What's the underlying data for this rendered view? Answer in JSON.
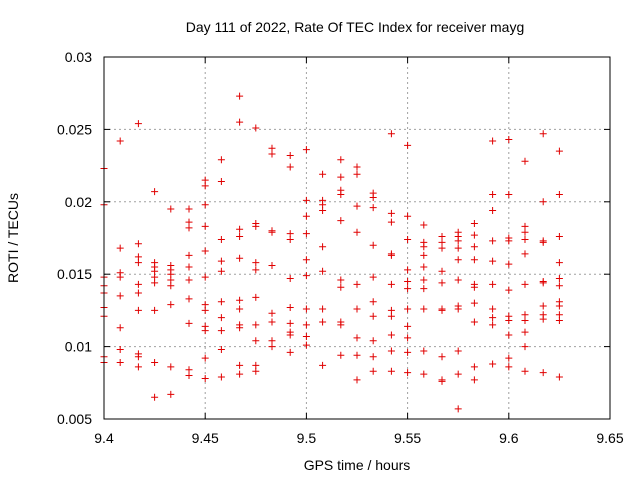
{
  "chart_data": {
    "type": "scatter",
    "title": "Day 111 of 2022, Rate Of TEC Index for receiver mayg",
    "xlabel": "GPS time / hours",
    "ylabel": "ROTI / TECUs",
    "xlim": [
      9.4,
      9.65
    ],
    "ylim": [
      0.005,
      0.03
    ],
    "xticks": [
      9.4,
      9.45,
      9.5,
      9.55,
      9.6,
      9.65
    ],
    "xtick_labels": [
      "9.4",
      "9.45",
      "9.5",
      "9.55",
      "9.6",
      "9.65"
    ],
    "yticks": [
      0.005,
      0.01,
      0.015,
      0.02,
      0.025,
      0.03
    ],
    "ytick_labels": [
      "0.005",
      "0.01",
      "0.015",
      "0.02",
      "0.025",
      "0.03"
    ],
    "grid": true,
    "marker": "+",
    "color": "#e00000",
    "series": [
      {
        "name": "ROTI",
        "points": [
          [
            9.4,
            0.0223
          ],
          [
            9.4,
            0.0198
          ],
          [
            9.4,
            0.0148
          ],
          [
            9.4,
            0.0142
          ],
          [
            9.4,
            0.0137
          ],
          [
            9.4,
            0.0127
          ],
          [
            9.4,
            0.0121
          ],
          [
            9.4,
            0.0093
          ],
          [
            9.4,
            0.0089
          ],
          [
            9.408,
            0.0242
          ],
          [
            9.408,
            0.0168
          ],
          [
            9.408,
            0.0151
          ],
          [
            9.408,
            0.0148
          ],
          [
            9.408,
            0.0135
          ],
          [
            9.408,
            0.0113
          ],
          [
            9.408,
            0.0098
          ],
          [
            9.408,
            0.0089
          ],
          [
            9.417,
            0.0254
          ],
          [
            9.417,
            0.0171
          ],
          [
            9.417,
            0.0162
          ],
          [
            9.417,
            0.0158
          ],
          [
            9.417,
            0.0143
          ],
          [
            9.417,
            0.0137
          ],
          [
            9.417,
            0.0125
          ],
          [
            9.417,
            0.0095
          ],
          [
            9.417,
            0.0093
          ],
          [
            9.417,
            0.0086
          ],
          [
            9.425,
            0.0207
          ],
          [
            9.425,
            0.0158
          ],
          [
            9.425,
            0.0155
          ],
          [
            9.425,
            0.0152
          ],
          [
            9.425,
            0.0148
          ],
          [
            9.425,
            0.0144
          ],
          [
            9.425,
            0.0125
          ],
          [
            9.425,
            0.0089
          ],
          [
            9.425,
            0.0065
          ],
          [
            9.433,
            0.0195
          ],
          [
            9.433,
            0.0156
          ],
          [
            9.433,
            0.0153
          ],
          [
            9.433,
            0.015
          ],
          [
            9.433,
            0.0146
          ],
          [
            9.433,
            0.0142
          ],
          [
            9.433,
            0.0129
          ],
          [
            9.433,
            0.0086
          ],
          [
            9.433,
            0.0067
          ],
          [
            9.442,
            0.0195
          ],
          [
            9.442,
            0.0186
          ],
          [
            9.442,
            0.0182
          ],
          [
            9.442,
            0.0163
          ],
          [
            9.442,
            0.0155
          ],
          [
            9.442,
            0.0146
          ],
          [
            9.442,
            0.0133
          ],
          [
            9.442,
            0.0116
          ],
          [
            9.442,
            0.0084
          ],
          [
            9.442,
            0.008
          ],
          [
            9.45,
            0.0215
          ],
          [
            9.45,
            0.0211
          ],
          [
            9.45,
            0.0198
          ],
          [
            9.45,
            0.0183
          ],
          [
            9.45,
            0.0166
          ],
          [
            9.45,
            0.0148
          ],
          [
            9.45,
            0.0129
          ],
          [
            9.45,
            0.0125
          ],
          [
            9.45,
            0.0114
          ],
          [
            9.45,
            0.0111
          ],
          [
            9.45,
            0.0092
          ],
          [
            9.45,
            0.0078
          ],
          [
            9.458,
            0.0229
          ],
          [
            9.458,
            0.0214
          ],
          [
            9.458,
            0.0174
          ],
          [
            9.458,
            0.0159
          ],
          [
            9.458,
            0.0152
          ],
          [
            9.458,
            0.0131
          ],
          [
            9.458,
            0.012
          ],
          [
            9.458,
            0.0111
          ],
          [
            9.458,
            0.0098
          ],
          [
            9.458,
            0.0079
          ],
          [
            9.467,
            0.0273
          ],
          [
            9.467,
            0.0255
          ],
          [
            9.467,
            0.0181
          ],
          [
            9.467,
            0.0176
          ],
          [
            9.467,
            0.0161
          ],
          [
            9.467,
            0.0132
          ],
          [
            9.467,
            0.0126
          ],
          [
            9.467,
            0.0115
          ],
          [
            9.467,
            0.0113
          ],
          [
            9.467,
            0.0087
          ],
          [
            9.467,
            0.0081
          ],
          [
            9.475,
            0.0251
          ],
          [
            9.475,
            0.0185
          ],
          [
            9.475,
            0.0183
          ],
          [
            9.475,
            0.0158
          ],
          [
            9.475,
            0.0153
          ],
          [
            9.475,
            0.0134
          ],
          [
            9.475,
            0.0115
          ],
          [
            9.475,
            0.0104
          ],
          [
            9.475,
            0.0087
          ],
          [
            9.475,
            0.0083
          ],
          [
            9.483,
            0.0237
          ],
          [
            9.483,
            0.0233
          ],
          [
            9.483,
            0.018
          ],
          [
            9.483,
            0.0179
          ],
          [
            9.483,
            0.0156
          ],
          [
            9.483,
            0.0123
          ],
          [
            9.483,
            0.0117
          ],
          [
            9.483,
            0.0104
          ],
          [
            9.483,
            0.01
          ],
          [
            9.492,
            0.0232
          ],
          [
            9.492,
            0.0224
          ],
          [
            9.492,
            0.0178
          ],
          [
            9.492,
            0.0174
          ],
          [
            9.492,
            0.0147
          ],
          [
            9.492,
            0.0127
          ],
          [
            9.492,
            0.0116
          ],
          [
            9.492,
            0.011
          ],
          [
            9.492,
            0.0108
          ],
          [
            9.492,
            0.0096
          ],
          [
            9.5,
            0.0236
          ],
          [
            9.5,
            0.0201
          ],
          [
            9.5,
            0.019
          ],
          [
            9.5,
            0.0178
          ],
          [
            9.5,
            0.016
          ],
          [
            9.5,
            0.0149
          ],
          [
            9.5,
            0.0126
          ],
          [
            9.5,
            0.0115
          ],
          [
            9.5,
            0.0107
          ],
          [
            9.5,
            0.0101
          ],
          [
            9.508,
            0.0219
          ],
          [
            9.508,
            0.0201
          ],
          [
            9.508,
            0.0198
          ],
          [
            9.508,
            0.0194
          ],
          [
            9.508,
            0.0169
          ],
          [
            9.508,
            0.0152
          ],
          [
            9.508,
            0.0126
          ],
          [
            9.508,
            0.0117
          ],
          [
            9.508,
            0.0087
          ],
          [
            9.517,
            0.0229
          ],
          [
            9.517,
            0.0217
          ],
          [
            9.517,
            0.0208
          ],
          [
            9.517,
            0.0205
          ],
          [
            9.517,
            0.0187
          ],
          [
            9.517,
            0.0146
          ],
          [
            9.517,
            0.0141
          ],
          [
            9.517,
            0.0117
          ],
          [
            9.517,
            0.0115
          ],
          [
            9.517,
            0.0094
          ],
          [
            9.525,
            0.0224
          ],
          [
            9.525,
            0.0219
          ],
          [
            9.525,
            0.0197
          ],
          [
            9.525,
            0.0179
          ],
          [
            9.525,
            0.0143
          ],
          [
            9.525,
            0.0126
          ],
          [
            9.525,
            0.0106
          ],
          [
            9.525,
            0.0094
          ],
          [
            9.525,
            0.0077
          ],
          [
            9.533,
            0.0206
          ],
          [
            9.533,
            0.0203
          ],
          [
            9.533,
            0.0196
          ],
          [
            9.533,
            0.017
          ],
          [
            9.533,
            0.0148
          ],
          [
            9.533,
            0.0131
          ],
          [
            9.533,
            0.0121
          ],
          [
            9.533,
            0.0104
          ],
          [
            9.533,
            0.0093
          ],
          [
            9.533,
            0.0083
          ],
          [
            9.542,
            0.0247
          ],
          [
            9.542,
            0.0192
          ],
          [
            9.542,
            0.0186
          ],
          [
            9.542,
            0.0164
          ],
          [
            9.542,
            0.0163
          ],
          [
            9.542,
            0.0143
          ],
          [
            9.542,
            0.0125
          ],
          [
            9.542,
            0.0121
          ],
          [
            9.542,
            0.0108
          ],
          [
            9.542,
            0.0097
          ],
          [
            9.542,
            0.0083
          ],
          [
            9.55,
            0.0239
          ],
          [
            9.55,
            0.019
          ],
          [
            9.55,
            0.0174
          ],
          [
            9.55,
            0.0153
          ],
          [
            9.55,
            0.0145
          ],
          [
            9.55,
            0.014
          ],
          [
            9.55,
            0.0126
          ],
          [
            9.55,
            0.0114
          ],
          [
            9.55,
            0.0106
          ],
          [
            9.55,
            0.0096
          ],
          [
            9.55,
            0.0082
          ],
          [
            9.558,
            0.0184
          ],
          [
            9.558,
            0.0172
          ],
          [
            9.558,
            0.0169
          ],
          [
            9.558,
            0.0163
          ],
          [
            9.558,
            0.0155
          ],
          [
            9.558,
            0.0146
          ],
          [
            9.558,
            0.014
          ],
          [
            9.558,
            0.0126
          ],
          [
            9.558,
            0.0097
          ],
          [
            9.558,
            0.0081
          ],
          [
            9.567,
            0.0176
          ],
          [
            9.567,
            0.0172
          ],
          [
            9.567,
            0.0168
          ],
          [
            9.567,
            0.0152
          ],
          [
            9.567,
            0.0144
          ],
          [
            9.567,
            0.0126
          ],
          [
            9.567,
            0.0125
          ],
          [
            9.567,
            0.0093
          ],
          [
            9.567,
            0.0077
          ],
          [
            9.567,
            0.0076
          ],
          [
            9.575,
            0.0179
          ],
          [
            9.575,
            0.0176
          ],
          [
            9.575,
            0.0173
          ],
          [
            9.575,
            0.0168
          ],
          [
            9.575,
            0.016
          ],
          [
            9.575,
            0.0146
          ],
          [
            9.575,
            0.0128
          ],
          [
            9.575,
            0.0126
          ],
          [
            9.575,
            0.0097
          ],
          [
            9.575,
            0.0081
          ],
          [
            9.575,
            0.0057
          ],
          [
            9.583,
            0.0185
          ],
          [
            9.583,
            0.0177
          ],
          [
            9.583,
            0.0169
          ],
          [
            9.583,
            0.016
          ],
          [
            9.583,
            0.0143
          ],
          [
            9.583,
            0.0141
          ],
          [
            9.583,
            0.013
          ],
          [
            9.583,
            0.0117
          ],
          [
            9.583,
            0.0086
          ],
          [
            9.583,
            0.0077
          ],
          [
            9.592,
            0.0242
          ],
          [
            9.592,
            0.0205
          ],
          [
            9.592,
            0.0194
          ],
          [
            9.592,
            0.0173
          ],
          [
            9.592,
            0.0159
          ],
          [
            9.592,
            0.0143
          ],
          [
            9.592,
            0.0126
          ],
          [
            9.592,
            0.012
          ],
          [
            9.592,
            0.0115
          ],
          [
            9.592,
            0.0088
          ],
          [
            9.6,
            0.0243
          ],
          [
            9.6,
            0.0205
          ],
          [
            9.6,
            0.0175
          ],
          [
            9.6,
            0.0173
          ],
          [
            9.6,
            0.0157
          ],
          [
            9.6,
            0.0139
          ],
          [
            9.6,
            0.0121
          ],
          [
            9.6,
            0.0118
          ],
          [
            9.6,
            0.0108
          ],
          [
            9.6,
            0.0092
          ],
          [
            9.6,
            0.0086
          ],
          [
            9.608,
            0.0228
          ],
          [
            9.608,
            0.0183
          ],
          [
            9.608,
            0.0179
          ],
          [
            9.608,
            0.0174
          ],
          [
            9.608,
            0.0164
          ],
          [
            9.608,
            0.0143
          ],
          [
            9.608,
            0.0122
          ],
          [
            9.608,
            0.0118
          ],
          [
            9.608,
            0.011
          ],
          [
            9.608,
            0.01
          ],
          [
            9.608,
            0.0083
          ],
          [
            9.617,
            0.0247
          ],
          [
            9.617,
            0.02
          ],
          [
            9.617,
            0.0173
          ],
          [
            9.617,
            0.0172
          ],
          [
            9.617,
            0.0145
          ],
          [
            9.617,
            0.0144
          ],
          [
            9.617,
            0.0128
          ],
          [
            9.617,
            0.0122
          ],
          [
            9.617,
            0.0119
          ],
          [
            9.617,
            0.0082
          ],
          [
            9.625,
            0.0235
          ],
          [
            9.625,
            0.0205
          ],
          [
            9.625,
            0.0176
          ],
          [
            9.625,
            0.0158
          ],
          [
            9.625,
            0.0147
          ],
          [
            9.625,
            0.0142
          ],
          [
            9.625,
            0.0131
          ],
          [
            9.625,
            0.0128
          ],
          [
            9.625,
            0.0122
          ],
          [
            9.625,
            0.0118
          ],
          [
            9.625,
            0.0079
          ]
        ]
      }
    ]
  }
}
